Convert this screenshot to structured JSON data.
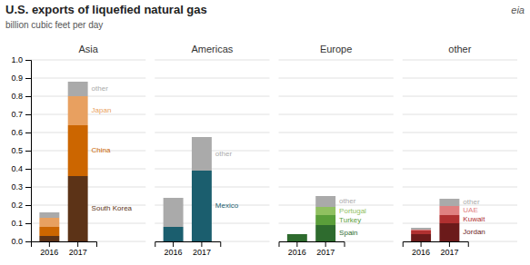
{
  "title": "U.S. exports of liquefied natural gas",
  "subtitle": "billion cubic feet per day",
  "annotations": [
    "eia"
  ],
  "chart_data": [
    {
      "type": "bar",
      "stacked": true,
      "title": "Asia",
      "categories": [
        "2016",
        "2017"
      ],
      "series": [
        {
          "name": "South Korea",
          "color": "#5C3317",
          "values": [
            0.03,
            0.36
          ]
        },
        {
          "name": "China",
          "color": "#CC6600",
          "values": [
            0.05,
            0.28
          ]
        },
        {
          "name": "Japan",
          "color": "#E8A060",
          "values": [
            0.05,
            0.16
          ]
        },
        {
          "name": "other",
          "color": "#AAAAAA",
          "values": [
            0.03,
            0.08
          ]
        }
      ],
      "ylim": [
        0,
        1.0
      ],
      "yticks": [
        {
          "value": 0.0,
          "label": "0.0"
        },
        0.1,
        0.2,
        0.3,
        0.4,
        0.5,
        0.6,
        0.7,
        0.8,
        0.9,
        {
          "value": 1.0,
          "label": "1.0"
        }
      ],
      "grid": true
    },
    {
      "type": "bar",
      "stacked": true,
      "title": "Americas",
      "categories": [
        "2016",
        "2017"
      ],
      "series": [
        {
          "name": "Mexico",
          "color": "#1B5E6E",
          "values": [
            0.08,
            0.39
          ]
        },
        {
          "name": "other",
          "color": "#AAAAAA",
          "values": [
            0.16,
            0.185
          ]
        }
      ],
      "ylim": [
        0,
        1.0
      ],
      "yticks": [
        0.0,
        0.1,
        0.2,
        0.3,
        0.4,
        0.5,
        0.6,
        0.7,
        0.8,
        0.9,
        1.0
      ],
      "grid": true,
      "tick_labels": "x"
    },
    {
      "type": "bar",
      "stacked": true,
      "title": "Europe",
      "categories": [
        "2016",
        "2017"
      ],
      "series": [
        {
          "name": "Spain",
          "color": "#2E6B2E",
          "values": [
            0.04,
            0.09
          ]
        },
        {
          "name": "Turkey",
          "color": "#5A9E3A",
          "values": [
            0.0,
            0.055
          ]
        },
        {
          "name": "Portugal",
          "color": "#90C060",
          "values": [
            0.0,
            0.045
          ]
        },
        {
          "name": "other",
          "color": "#AAAAAA",
          "values": [
            0.0,
            0.06
          ]
        }
      ],
      "ylim": [
        0,
        1.0
      ],
      "yticks": [
        0.0,
        0.1,
        0.2,
        0.3,
        0.4,
        0.5,
        0.6,
        0.7,
        0.8,
        0.9,
        1.0
      ],
      "grid": true,
      "tick_labels": "x"
    },
    {
      "type": "bar",
      "stacked": true,
      "title": "other",
      "categories": [
        "2016",
        "2017"
      ],
      "series": [
        {
          "name": "Jordan",
          "color": "#6B1A1A",
          "values": [
            0.04,
            0.1
          ]
        },
        {
          "name": "Kuwait",
          "color": "#B03030",
          "values": [
            0.02,
            0.045
          ]
        },
        {
          "name": "UAE",
          "color": "#E08080",
          "values": [
            0.005,
            0.05
          ]
        },
        {
          "name": "other",
          "color": "#AAAAAA",
          "values": [
            0.01,
            0.04
          ]
        }
      ],
      "ylim": [
        0,
        1.0
      ],
      "yticks": [
        0.0,
        0.1,
        0.2,
        0.3,
        0.4,
        0.5,
        0.6,
        0.7,
        0.8,
        0.9,
        1.0
      ],
      "grid": true,
      "tick_labels": "x"
    }
  ]
}
